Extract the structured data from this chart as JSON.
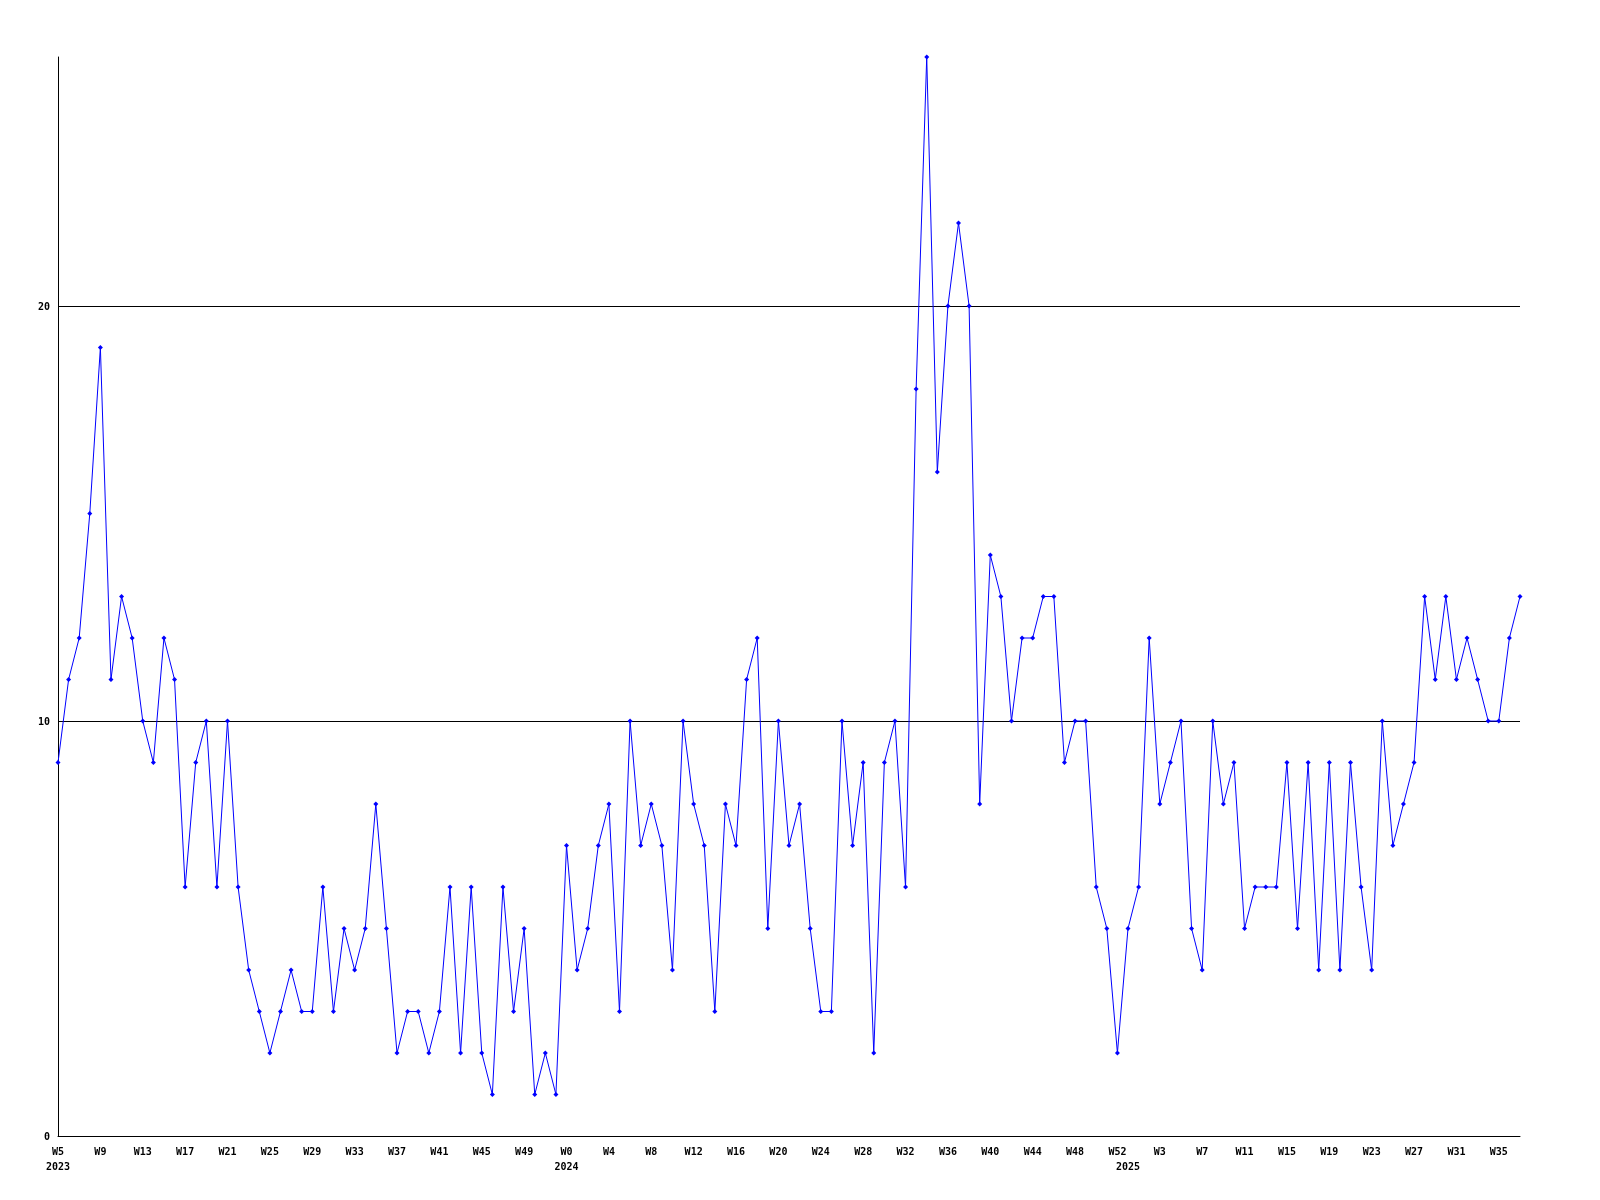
{
  "chart_data": {
    "type": "line",
    "categories": [
      "W5\n2023",
      null,
      null,
      null,
      "W9",
      null,
      null,
      null,
      "W13",
      null,
      null,
      null,
      "W17",
      null,
      null,
      null,
      "W21",
      null,
      null,
      null,
      "W25",
      null,
      null,
      null,
      "W29",
      null,
      null,
      null,
      "W33",
      null,
      null,
      null,
      "W37",
      null,
      null,
      null,
      "W41",
      null,
      null,
      null,
      "W45",
      null,
      null,
      null,
      "W49",
      null,
      null,
      null,
      "W0\n2024",
      null,
      null,
      null,
      "W4",
      null,
      null,
      null,
      "W8",
      null,
      null,
      null,
      "W12",
      null,
      null,
      null,
      "W16",
      null,
      null,
      null,
      "W20",
      null,
      null,
      null,
      "W24",
      null,
      null,
      null,
      "W28",
      null,
      null,
      null,
      "W32",
      null,
      null,
      null,
      "W36",
      null,
      null,
      null,
      "W40",
      null,
      null,
      null,
      "W44",
      null,
      null,
      null,
      "W48",
      null,
      null,
      null,
      "W52",
      "\n2025",
      null,
      null,
      "W3",
      null,
      null,
      null,
      "W7",
      null,
      null,
      null,
      "W11",
      null,
      null,
      null,
      "W15",
      null,
      null,
      null,
      "W19",
      null,
      null,
      null,
      "W23",
      null,
      null,
      null,
      "W27",
      null,
      null,
      null,
      "W31",
      null,
      null,
      null,
      "W35",
      null,
      null
    ],
    "values": [
      9,
      11,
      12,
      15,
      19,
      11,
      13,
      12,
      10,
      9,
      12,
      11,
      6,
      9,
      10,
      6,
      10,
      6,
      4,
      3,
      2,
      3,
      4,
      3,
      3,
      6,
      3,
      5,
      4,
      5,
      8,
      5,
      2,
      3,
      3,
      2,
      3,
      6,
      2,
      6,
      2,
      1,
      6,
      3,
      5,
      1,
      2,
      1,
      7,
      4,
      5,
      7,
      8,
      3,
      10,
      7,
      8,
      7,
      4,
      10,
      8,
      7,
      3,
      8,
      7,
      11,
      12,
      5,
      10,
      7,
      8,
      5,
      3,
      3,
      10,
      7,
      9,
      2,
      9,
      10,
      6,
      18,
      26,
      16,
      20,
      22,
      20,
      8,
      14,
      13,
      10,
      12,
      12,
      13,
      13,
      9,
      10,
      10,
      6,
      5,
      2,
      5,
      6,
      12,
      8,
      9,
      10,
      5,
      4,
      10,
      8,
      9,
      5,
      6,
      6,
      6,
      9,
      5,
      9,
      4,
      9,
      4,
      9,
      6,
      4,
      10,
      7,
      8,
      9,
      13,
      11,
      13,
      11,
      12,
      11,
      10,
      10,
      12,
      13
    ],
    "color": "#0000ff",
    "ylim": [
      0,
      26
    ],
    "yticks": [
      0,
      10,
      20
    ],
    "grid": "y",
    "marker": "diamond",
    "line_style": "solid"
  }
}
